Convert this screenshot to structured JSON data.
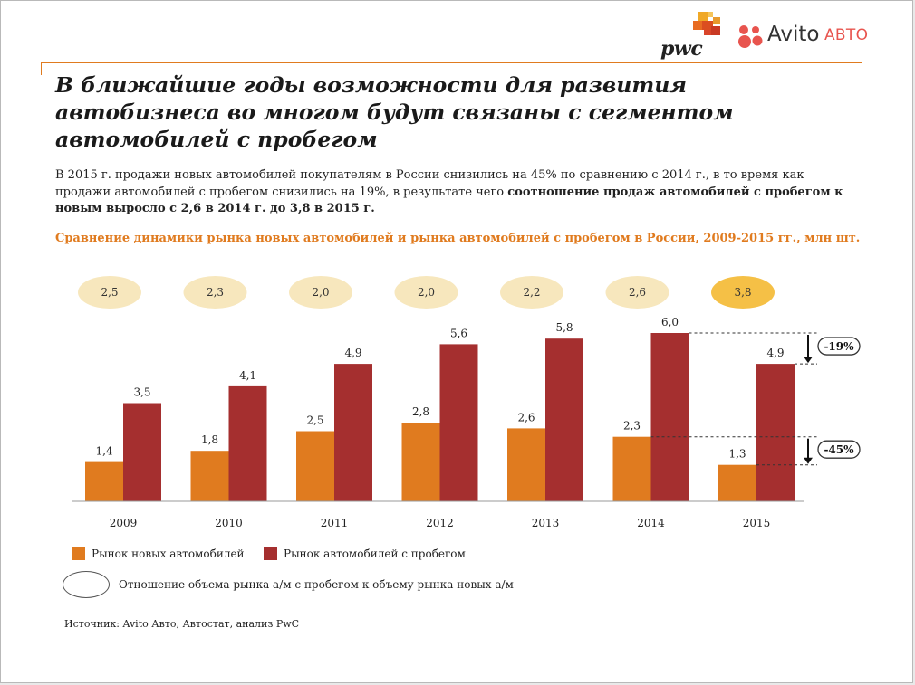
{
  "header": {
    "logo_pwc": "pwc",
    "logo_avito": "Avito",
    "logo_avito_suffix": "АВТО"
  },
  "title": "В ближайшие годы возможности для развития автобизнеса во многом будут связаны с сегментом автомобилей с пробегом",
  "lead": {
    "text": "В 2015 г. продажи новых автомобилей покупателям в России снизились на 45% по сравнению с 2014 г., в то время как продажи автомобилей с пробегом снизились на 19%, в результате чего ",
    "bold": "соотношение продаж автомобилей с пробегом к новым выросло с 2,6 в 2014 г. до 3,8 в 2015 г."
  },
  "chart_title": "Сравнение динамики рынка новых автомобилей и рынка автомобилей с пробегом в России, 2009-2015 гг., млн шт.",
  "chart_data": {
    "type": "bar",
    "categories": [
      "2009",
      "2010",
      "2011",
      "2012",
      "2013",
      "2014",
      "2015"
    ],
    "series": [
      {
        "name": "Рынок новых автомобилей",
        "values": [
          1.4,
          1.8,
          2.5,
          2.8,
          2.6,
          2.3,
          1.3
        ],
        "labels": [
          "1,4",
          "1,8",
          "2,5",
          "2,8",
          "2,6",
          "2,3",
          "1,3"
        ],
        "color": "#e07b1f"
      },
      {
        "name": "Рынок автомобилей с пробегом",
        "values": [
          3.5,
          4.1,
          4.9,
          5.6,
          5.8,
          6.0,
          4.9
        ],
        "labels": [
          "3,5",
          "4,1",
          "4,9",
          "5,6",
          "5,8",
          "6,0",
          "4,9"
        ],
        "color": "#a52f2f"
      }
    ],
    "ratios": [
      "2,5",
      "2,3",
      "2,0",
      "2,0",
      "2,2",
      "2,6",
      "3,8"
    ],
    "ratio_highlight_index": 6,
    "ratio_color": "#f7e7bd",
    "ratio_highlight_color": "#f5c046",
    "changes": [
      {
        "label": "-19%",
        "series": 1
      },
      {
        "label": "-45%",
        "series": 0
      }
    ],
    "ylim": [
      0,
      6.0
    ],
    "grid": false,
    "legend": "bottom"
  },
  "legend": {
    "ratio_text": "Отношение объема рынка а/м с пробегом к объему рынка новых а/м"
  },
  "source": "Источник: Avito Авто, Автостат, анализ PwC"
}
